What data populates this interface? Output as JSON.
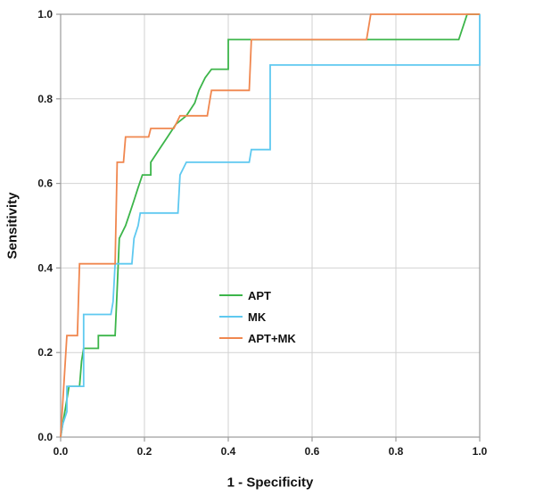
{
  "chart_data": {
    "type": "line",
    "subtype": "roc-curve-step",
    "title": "",
    "xlabel": "1 - Specificity",
    "ylabel": "Sensitivity",
    "xlim": [
      0,
      1
    ],
    "ylim": [
      0,
      1
    ],
    "xticks": [
      0,
      0.2,
      0.4,
      0.6,
      0.8,
      1.0
    ],
    "yticks": [
      0,
      0.2,
      0.4,
      0.6,
      0.8,
      1.0
    ],
    "xtick_labels": [
      "0.0",
      "0.2",
      "0.4",
      "0.6",
      "0.8",
      "1.0"
    ],
    "ytick_labels": [
      "0.0",
      "0.2",
      "0.4",
      "0.6",
      "0.8",
      "1.0"
    ],
    "grid": true,
    "grid_color": "#d2d2d2",
    "frame_color": "#9b9b9b",
    "legend_position": "inside-center",
    "series": [
      {
        "name": "APT",
        "color": "#3cb54a",
        "points": [
          [
            0,
            0
          ],
          [
            0.02,
            0.12
          ],
          [
            0.045,
            0.12
          ],
          [
            0.05,
            0.18
          ],
          [
            0.055,
            0.21
          ],
          [
            0.09,
            0.21
          ],
          [
            0.09,
            0.24
          ],
          [
            0.13,
            0.24
          ],
          [
            0.135,
            0.35
          ],
          [
            0.14,
            0.47
          ],
          [
            0.155,
            0.5
          ],
          [
            0.165,
            0.53
          ],
          [
            0.175,
            0.56
          ],
          [
            0.185,
            0.59
          ],
          [
            0.195,
            0.62
          ],
          [
            0.215,
            0.62
          ],
          [
            0.215,
            0.65
          ],
          [
            0.235,
            0.68
          ],
          [
            0.255,
            0.71
          ],
          [
            0.275,
            0.74
          ],
          [
            0.3,
            0.76
          ],
          [
            0.32,
            0.79
          ],
          [
            0.33,
            0.82
          ],
          [
            0.345,
            0.85
          ],
          [
            0.36,
            0.87
          ],
          [
            0.4,
            0.87
          ],
          [
            0.4,
            0.94
          ],
          [
            0.95,
            0.94
          ],
          [
            0.97,
            1
          ],
          [
            1,
            1
          ]
        ]
      },
      {
        "name": "MK",
        "color": "#5fc9f0",
        "points": [
          [
            0,
            0
          ],
          [
            0.005,
            0.03
          ],
          [
            0.015,
            0.06
          ],
          [
            0.015,
            0.12
          ],
          [
            0.055,
            0.12
          ],
          [
            0.055,
            0.29
          ],
          [
            0.12,
            0.29
          ],
          [
            0.125,
            0.32
          ],
          [
            0.13,
            0.41
          ],
          [
            0.17,
            0.41
          ],
          [
            0.175,
            0.47
          ],
          [
            0.185,
            0.5
          ],
          [
            0.19,
            0.53
          ],
          [
            0.28,
            0.53
          ],
          [
            0.285,
            0.62
          ],
          [
            0.3,
            0.65
          ],
          [
            0.45,
            0.65
          ],
          [
            0.455,
            0.68
          ],
          [
            0.5,
            0.68
          ],
          [
            0.5,
            0.88
          ],
          [
            1,
            0.88
          ],
          [
            1,
            1
          ]
        ]
      },
      {
        "name": "APT+MK",
        "color": "#f0874f",
        "points": [
          [
            0,
            0
          ],
          [
            0.015,
            0.24
          ],
          [
            0.04,
            0.24
          ],
          [
            0.045,
            0.41
          ],
          [
            0.13,
            0.41
          ],
          [
            0.135,
            0.65
          ],
          [
            0.15,
            0.65
          ],
          [
            0.155,
            0.71
          ],
          [
            0.21,
            0.71
          ],
          [
            0.215,
            0.73
          ],
          [
            0.27,
            0.73
          ],
          [
            0.285,
            0.76
          ],
          [
            0.35,
            0.76
          ],
          [
            0.355,
            0.79
          ],
          [
            0.36,
            0.82
          ],
          [
            0.45,
            0.82
          ],
          [
            0.455,
            0.94
          ],
          [
            0.73,
            0.94
          ],
          [
            0.74,
            1
          ],
          [
            1,
            1
          ]
        ]
      }
    ]
  },
  "legend": {
    "items": [
      {
        "label": "APT"
      },
      {
        "label": "MK"
      },
      {
        "label": "APT+MK"
      }
    ]
  }
}
